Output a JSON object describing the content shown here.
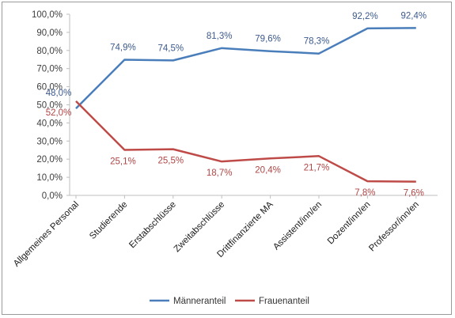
{
  "chart_data": {
    "type": "line",
    "title": "",
    "xlabel": "",
    "ylabel": "",
    "ylim": [
      0,
      100
    ],
    "y_ticks": [
      "0,0%",
      "10,0%",
      "20,0%",
      "30,0%",
      "40,0%",
      "50,0%",
      "60,0%",
      "70,0%",
      "80,0%",
      "90,0%",
      "100,0%"
    ],
    "categories": [
      "Allgemeines Personal",
      "Studierende",
      "Erstabschlüsse",
      "Zweitabschlüsse",
      "Drittfinanzierte MA",
      "Assistent/inn/en",
      "Dozent/inn/en",
      "Professor/inn/en"
    ],
    "series": [
      {
        "name": "Männeranteil",
        "color": "#4a7ebb",
        "values": [
          48.0,
          74.9,
          74.5,
          81.3,
          79.6,
          78.3,
          92.2,
          92.4
        ],
        "labels": [
          "48,0%",
          "74,9%",
          "74,5%",
          "81,3%",
          "79,6%",
          "78,3%",
          "92,2%",
          "92,4%"
        ]
      },
      {
        "name": "Frauenanteil",
        "color": "#be4b48",
        "values": [
          52.0,
          25.1,
          25.5,
          18.7,
          20.4,
          21.7,
          7.8,
          7.6
        ],
        "labels": [
          "52,0%",
          "25,1%",
          "25,5%",
          "18,7%",
          "20,4%",
          "21,7%",
          "7,8%",
          "7,6%"
        ]
      }
    ],
    "grid": false,
    "legend_position": "bottom"
  }
}
